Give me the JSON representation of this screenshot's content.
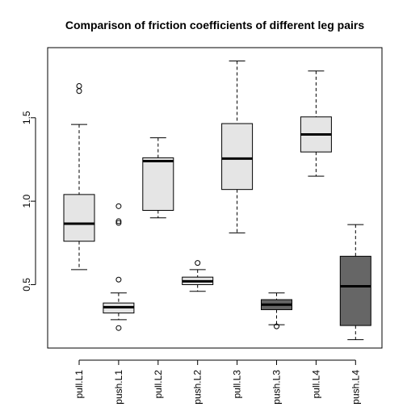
{
  "chart_data": {
    "type": "boxplot",
    "title": "Comparison of friction coefficients of different leg pairs",
    "xlabel": "",
    "ylabel": "",
    "ylim": [
      0.12,
      1.92
    ],
    "yticks": [
      0.5,
      1.0,
      1.5
    ],
    "ytick_labels": [
      "0.5",
      "1.0",
      "1.5"
    ],
    "categories": [
      "pull.L1",
      "push.L1",
      "pull.L2",
      "push.L2",
      "pull.L3",
      "push.L3",
      "pull.L4",
      "push.L4"
    ],
    "boxes": [
      {
        "name": "pull.L1",
        "lower_whisker": 0.59,
        "q1": 0.76,
        "median": 0.865,
        "q3": 1.04,
        "upper_whisker": 1.46,
        "outliers": [
          1.66,
          1.69
        ],
        "color": "#e5e5e5"
      },
      {
        "name": "push.L1",
        "lower_whisker": 0.29,
        "q1": 0.33,
        "median": 0.365,
        "q3": 0.39,
        "upper_whisker": 0.45,
        "outliers": [
          0.24,
          0.53,
          0.87,
          0.88,
          0.97
        ],
        "color": "#e5e5e5"
      },
      {
        "name": "pull.L2",
        "lower_whisker": 0.9,
        "q1": 0.945,
        "median": 1.24,
        "q3": 1.26,
        "upper_whisker": 1.38,
        "outliers": [],
        "color": "#e5e5e5"
      },
      {
        "name": "push.L2",
        "lower_whisker": 0.46,
        "q1": 0.5,
        "median": 0.52,
        "q3": 0.545,
        "upper_whisker": 0.59,
        "outliers": [
          0.63
        ],
        "color": "#e5e5e5"
      },
      {
        "name": "pull.L3",
        "lower_whisker": 0.81,
        "q1": 1.07,
        "median": 1.255,
        "q3": 1.465,
        "upper_whisker": 1.84,
        "outliers": [],
        "color": "#e5e5e5"
      },
      {
        "name": "push.L3",
        "lower_whisker": 0.26,
        "q1": 0.35,
        "median": 0.38,
        "q3": 0.41,
        "upper_whisker": 0.45,
        "outliers": [
          0.25
        ],
        "color": "#666666"
      },
      {
        "name": "pull.L4",
        "lower_whisker": 1.15,
        "q1": 1.295,
        "median": 1.4,
        "q3": 1.505,
        "upper_whisker": 1.78,
        "outliers": [],
        "color": "#e5e5e5"
      },
      {
        "name": "push.L4",
        "lower_whisker": 0.17,
        "q1": 0.255,
        "median": 0.49,
        "q3": 0.67,
        "upper_whisker": 0.86,
        "outliers": [],
        "color": "#666666"
      }
    ],
    "grid": false,
    "legend": "none"
  }
}
